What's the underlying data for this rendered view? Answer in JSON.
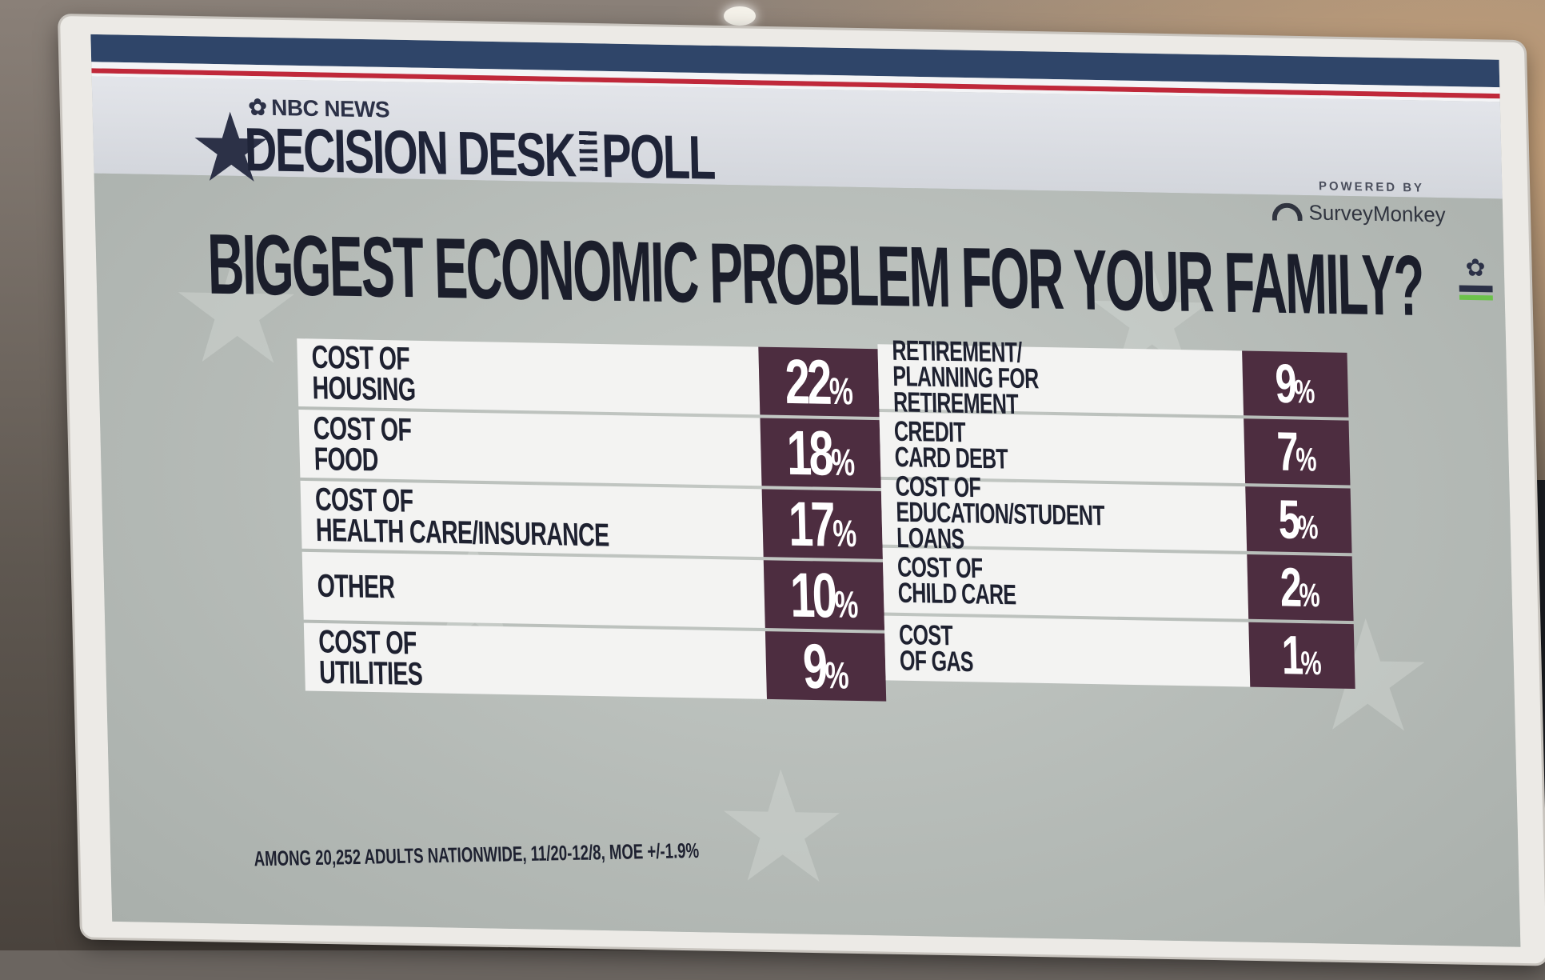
{
  "header": {
    "nbc_news": "NBC NEWS",
    "brand_decision": "DECISION",
    "brand_desk": "DESK",
    "brand_poll": "POLL",
    "powered_by": "POWERED BY",
    "surveymonkey": "SurveyMonkey"
  },
  "title": "BIGGEST ECONOMIC PROBLEM FOR YOUR FAMILY?",
  "left_rows": [
    {
      "label": "COST OF\nHOUSING",
      "value": "22"
    },
    {
      "label": "COST OF\nFOOD",
      "value": "18"
    },
    {
      "label": "COST OF\nHEALTH CARE/INSURANCE",
      "value": "17"
    },
    {
      "label": "OTHER",
      "value": "10"
    },
    {
      "label": "COST OF\nUTILITIES",
      "value": "9"
    }
  ],
  "right_rows": [
    {
      "label": "RETIREMENT/\nPLANNING FOR RETIREMENT",
      "value": "9"
    },
    {
      "label": "CREDIT\nCARD DEBT",
      "value": "7"
    },
    {
      "label": "COST OF\nEDUCATION/STUDENT LOANS",
      "value": "5"
    },
    {
      "label": "COST OF\nCHILD CARE",
      "value": "2"
    },
    {
      "label": "COST\nOF GAS",
      "value": "1"
    }
  ],
  "percent_sign": "%",
  "footnote": "AMONG 20,252 ADULTS NATIONWIDE, 11/20-12/8, MOE +/-1.9%",
  "icons": {
    "logo": "star-icon",
    "peacock": "nbc-peacock-icon",
    "surveymonkey": "surveymonkey-logo-icon"
  },
  "colors": {
    "percent_bg": "#4d2d40",
    "label_bg": "#f3f3f2",
    "stripe_blue": "#2f4569",
    "stripe_red": "#c0283a"
  }
}
